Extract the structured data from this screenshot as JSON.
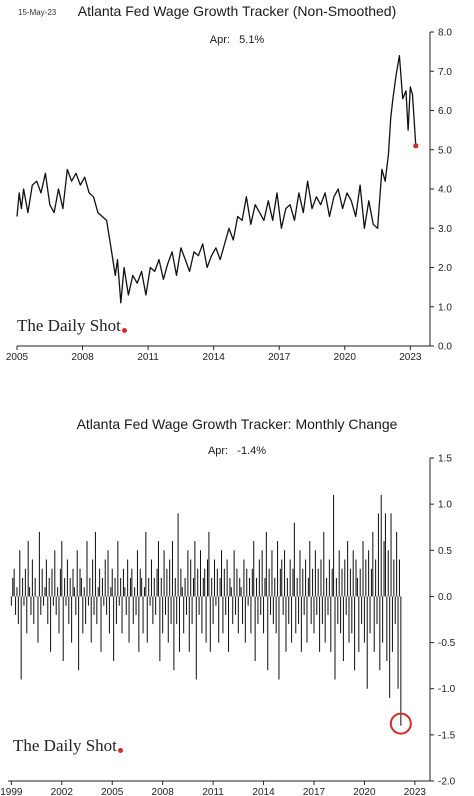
{
  "date_stamp": "15-May-23",
  "colors": {
    "line": "#111111",
    "bar": "#111111",
    "marker": "#d42a2a",
    "circle": "#d42a2a",
    "axis": "#222222"
  },
  "chart_data": [
    {
      "type": "line",
      "title": "Atlanta Fed Wage Growth Tracker (Non-Smoothed)",
      "annotation": {
        "label": "Apr:",
        "value": "5.1%"
      },
      "xlim": [
        2005,
        2023.9
      ],
      "ylim": [
        0,
        8
      ],
      "x_ticks": [
        2005,
        2008,
        2011,
        2014,
        2017,
        2020,
        2023
      ],
      "y_ticks": [
        0,
        1,
        2,
        3,
        4,
        5,
        6,
        7,
        8
      ],
      "y_tick_labels": [
        "0.0",
        "1.0",
        "2.0",
        "3.0",
        "4.0",
        "5.0",
        "6.0",
        "7.0",
        "8.0"
      ],
      "y_axis_side": "right",
      "grid": false,
      "series": [
        {
          "x": [
            2005.0,
            2005.1,
            2005.2,
            2005.3,
            2005.5,
            2005.7,
            2005.9,
            2006.1,
            2006.3,
            2006.5,
            2006.7,
            2006.9,
            2007.1,
            2007.3,
            2007.5,
            2007.7,
            2007.9,
            2008.1,
            2008.3,
            2008.5,
            2008.7,
            2008.9,
            2009.1,
            2009.3,
            2009.5,
            2009.6,
            2009.75,
            2009.9,
            2010.1,
            2010.3,
            2010.5,
            2010.7,
            2010.9,
            2011.1,
            2011.3,
            2011.5,
            2011.7,
            2011.9,
            2012.1,
            2012.3,
            2012.5,
            2012.7,
            2012.9,
            2013.1,
            2013.3,
            2013.5,
            2013.7,
            2013.9,
            2014.1,
            2014.3,
            2014.5,
            2014.7,
            2014.9,
            2015.1,
            2015.3,
            2015.5,
            2015.7,
            2015.9,
            2016.1,
            2016.3,
            2016.5,
            2016.7,
            2016.9,
            2017.1,
            2017.3,
            2017.5,
            2017.7,
            2017.9,
            2018.1,
            2018.3,
            2018.5,
            2018.7,
            2018.9,
            2019.1,
            2019.3,
            2019.5,
            2019.7,
            2019.9,
            2020.1,
            2020.3,
            2020.5,
            2020.7,
            2020.9,
            2021.1,
            2021.3,
            2021.5,
            2021.7,
            2021.85,
            2022.0,
            2022.1,
            2022.2,
            2022.35,
            2022.5,
            2022.65,
            2022.8,
            2022.9,
            2023.0,
            2023.1,
            2023.25
          ],
          "y": [
            3.3,
            3.9,
            3.5,
            4.0,
            3.4,
            4.1,
            4.2,
            3.9,
            4.4,
            3.6,
            3.4,
            4.0,
            3.5,
            4.5,
            4.2,
            4.4,
            4.1,
            4.3,
            3.9,
            3.8,
            3.4,
            3.3,
            3.2,
            2.5,
            1.8,
            2.2,
            1.1,
            2.0,
            1.3,
            1.8,
            1.6,
            1.9,
            1.3,
            2.0,
            1.9,
            2.2,
            1.7,
            2.1,
            2.4,
            1.8,
            2.5,
            2.2,
            1.9,
            2.4,
            2.3,
            2.6,
            2.0,
            2.3,
            2.5,
            2.2,
            2.6,
            3.0,
            2.7,
            3.3,
            3.2,
            3.8,
            3.1,
            3.6,
            3.4,
            3.2,
            3.7,
            3.2,
            3.9,
            3.0,
            3.5,
            3.6,
            3.2,
            3.9,
            3.4,
            4.2,
            3.5,
            3.8,
            3.6,
            3.9,
            3.3,
            3.8,
            4.0,
            3.5,
            3.9,
            3.7,
            3.3,
            4.1,
            3.0,
            3.7,
            3.1,
            3.0,
            4.5,
            4.2,
            4.9,
            5.8,
            6.3,
            6.9,
            7.4,
            6.3,
            6.5,
            5.5,
            6.6,
            6.4,
            5.1
          ]
        }
      ],
      "last_point": {
        "x": 2023.25,
        "y": 5.1
      }
    },
    {
      "type": "bar",
      "title": "Atlanta Fed Wage Growth Tracker: Monthly Change",
      "annotation": {
        "label": "Apr:",
        "value": "-1.4%"
      },
      "xlim": [
        1998.8,
        2023.9
      ],
      "ylim": [
        -2.0,
        1.5
      ],
      "x_ticks": [
        1999,
        2002,
        2005,
        2008,
        2011,
        2014,
        2017,
        2020,
        2023
      ],
      "y_ticks": [
        -2.0,
        -1.5,
        -1.0,
        -0.5,
        0.0,
        0.5,
        1.0,
        1.5
      ],
      "y_tick_labels": [
        "-2.0",
        "-1.5",
        "-1.0",
        "-0.5",
        "0.0",
        "0.5",
        "1.0",
        "1.5"
      ],
      "y_axis_side": "right",
      "grid": false,
      "series": [
        {
          "name": "",
          "start": 1999.0,
          "step": 0.08333,
          "values": [
            -0.1,
            0.2,
            0.3,
            -0.2,
            0.1,
            -0.3,
            0.5,
            -0.9,
            0.2,
            -0.1,
            0.3,
            -0.4,
            0.6,
            0.1,
            -0.2,
            0.4,
            -0.3,
            0.2,
            0.0,
            -0.5,
            0.7,
            -0.2,
            0.3,
            -0.1,
            0.1,
            0.4,
            -0.3,
            0.2,
            -0.6,
            0.3,
            -0.1,
            0.5,
            -0.2,
            0.1,
            -0.4,
            0.3,
            0.6,
            -0.7,
            0.2,
            -0.1,
            0.4,
            -0.3,
            0.2,
            -0.5,
            0.3,
            0.1,
            -0.2,
            0.5,
            -0.8,
            0.3,
            0.2,
            -0.4,
            0.1,
            -0.3,
            0.6,
            -0.1,
            0.2,
            -0.5,
            0.4,
            -0.2,
            0.7,
            -0.3,
            0.1,
            0.3,
            -0.6,
            0.2,
            -0.1,
            0.4,
            -0.2,
            0.5,
            -0.4,
            0.1,
            0.3,
            -0.7,
            0.2,
            -0.3,
            0.6,
            -0.1,
            0.2,
            -0.4,
            0.3,
            0.1,
            -0.2,
            0.4,
            -0.5,
            0.2,
            0.3,
            -0.3,
            0.1,
            -0.2,
            0.5,
            -0.6,
            0.3,
            0.2,
            -0.4,
            0.1,
            0.7,
            -0.5,
            0.2,
            -0.1,
            0.4,
            -0.3,
            0.2,
            -0.2,
            0.3,
            0.6,
            -0.7,
            0.2,
            -0.4,
            0.5,
            -0.2,
            0.3,
            -0.5,
            0.4,
            -0.3,
            0.6,
            -0.8,
            0.2,
            -0.3,
            0.9,
            -0.6,
            0.3,
            0.1,
            -0.4,
            0.2,
            -0.2,
            0.5,
            -0.6,
            0.4,
            -0.3,
            0.2,
            0.6,
            -0.9,
            0.3,
            -0.2,
            0.5,
            -0.4,
            0.2,
            0.3,
            -0.5,
            0.4,
            0.7,
            -0.6,
            0.2,
            -0.3,
            0.4,
            -0.1,
            0.3,
            -0.5,
            0.2,
            0.5,
            -0.4,
            0.3,
            -0.2,
            0.4,
            -0.6,
            0.2,
            0.1,
            -0.3,
            0.5,
            -0.2,
            0.3,
            -0.4,
            0.2,
            0.1,
            -0.3,
            0.4,
            -0.5,
            0.3,
            -0.1,
            0.2,
            -0.4,
            0.3,
            0.6,
            -0.7,
            0.2,
            -0.3,
            0.4,
            -0.2,
            0.5,
            -0.4,
            0.2,
            0.7,
            -0.8,
            0.3,
            -0.2,
            0.5,
            -0.3,
            0.2,
            -0.4,
            0.6,
            -0.9,
            0.3,
            0.4,
            -0.2,
            0.5,
            -0.6,
            0.2,
            -0.3,
            0.4,
            -0.5,
            0.3,
            0.8,
            -0.4,
            0.2,
            -0.3,
            0.5,
            -0.6,
            0.3,
            -0.2,
            0.4,
            -0.5,
            0.2,
            0.6,
            -0.3,
            0.3,
            -0.4,
            0.5,
            -0.2,
            0.3,
            -0.6,
            0.4,
            -0.3,
            0.7,
            -0.5,
            0.2,
            -0.2,
            0.4,
            -0.6,
            0.3,
            1.1,
            -0.9,
            0.2,
            -0.3,
            0.5,
            -0.4,
            0.3,
            -0.7,
            0.4,
            -0.2,
            0.6,
            -0.5,
            0.3,
            -0.4,
            0.5,
            -0.8,
            0.4,
            0.2,
            -0.6,
            0.3,
            -0.3,
            0.6,
            -0.5,
            0.4,
            -1.0,
            0.5,
            -0.4,
            0.3,
            0.7,
            -0.6,
            0.4,
            -0.3,
            0.9,
            -0.8,
            1.1,
            -0.5,
            0.6,
            0.9,
            -0.7,
            0.5,
            -1.1,
            0.9,
            -0.6,
            0.4,
            -0.3,
            0.7,
            -1.0,
            0.4,
            -1.4
          ]
        }
      ],
      "highlight": {
        "label": "Apr",
        "value": -1.4
      }
    }
  ],
  "logo": {
    "text": "The Daily Shot"
  }
}
